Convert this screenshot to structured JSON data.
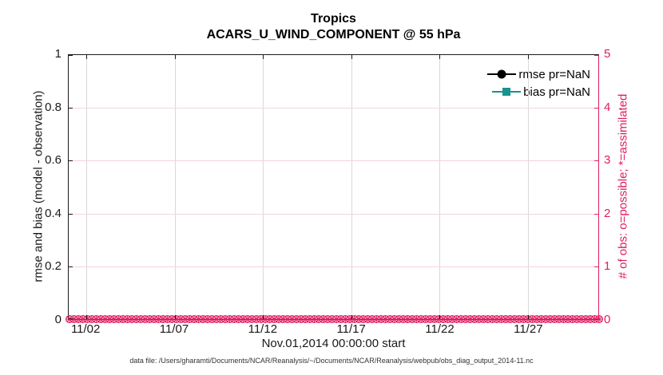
{
  "titles": {
    "line1": "Tropics",
    "line2": "ACARS_U_WIND_COMPONENT @ 55 hPa"
  },
  "axis_labels": {
    "y_left": "rmse and bias (model - observation)",
    "y_right": "# of obs: o=possible; *=assimilated",
    "x": "Nov.01,2014 00:00:00 start"
  },
  "legend": {
    "items": [
      {
        "label": "rmse pr=NaN",
        "color": "#000000",
        "marker": "circle"
      },
      {
        "label": "bias pr=NaN",
        "color": "#16948E",
        "marker": "square"
      }
    ]
  },
  "footer": {
    "datafile": "data file: /Users/gharamti/Documents/NCAR/Reanalysis/~/Documents/NCAR/Reanalysis/webpub/obs_diag_output_2014-11.nc"
  },
  "chart_data": {
    "type": "line",
    "title": "Tropics",
    "subtitle": "ACARS_U_WIND_COMPONENT @ 55 hPa",
    "xlabel": "Nov.01,2014 00:00:00 start",
    "ylabel_left": "rmse and bias (model - observation)",
    "ylabel_right": "# of obs: o=possible; *=assimilated",
    "x_tick_labels": [
      "11/02",
      "11/07",
      "11/12",
      "11/17",
      "11/22",
      "11/27"
    ],
    "x_tick_days": [
      1,
      6,
      11,
      16,
      21,
      26
    ],
    "x_range_days": [
      0,
      30
    ],
    "ylim_left": [
      0,
      1
    ],
    "ytick_labels_left": [
      "0",
      "0.2",
      "0.4",
      "0.6",
      "0.8",
      "1"
    ],
    "ylim_right": [
      0,
      5
    ],
    "ytick_labels_right": [
      "0",
      "1",
      "2",
      "3",
      "4",
      "5"
    ],
    "grid": true,
    "grid_color_vertical": "#d9d9d9",
    "grid_color_horizontal": "#f6d3e1",
    "axis_color_left": "#1a1a1a",
    "axis_color_right": "#DE1E63",
    "legend_position": "top-right",
    "series": [
      {
        "name": "rmse pr=NaN",
        "color": "#000000",
        "marker": "circle",
        "values": [],
        "note": "all NaN, nothing plotted"
      },
      {
        "name": "bias pr=NaN",
        "color": "#16948E",
        "marker": "square",
        "values": [],
        "note": "all NaN, nothing plotted"
      }
    ],
    "obs_counts": {
      "n_bins": 120,
      "possible_per_bin": 0,
      "assimilated_per_bin": 0,
      "marker_color": "#DE1E63",
      "possible_marker": "o",
      "assimilated_marker": "*"
    }
  }
}
